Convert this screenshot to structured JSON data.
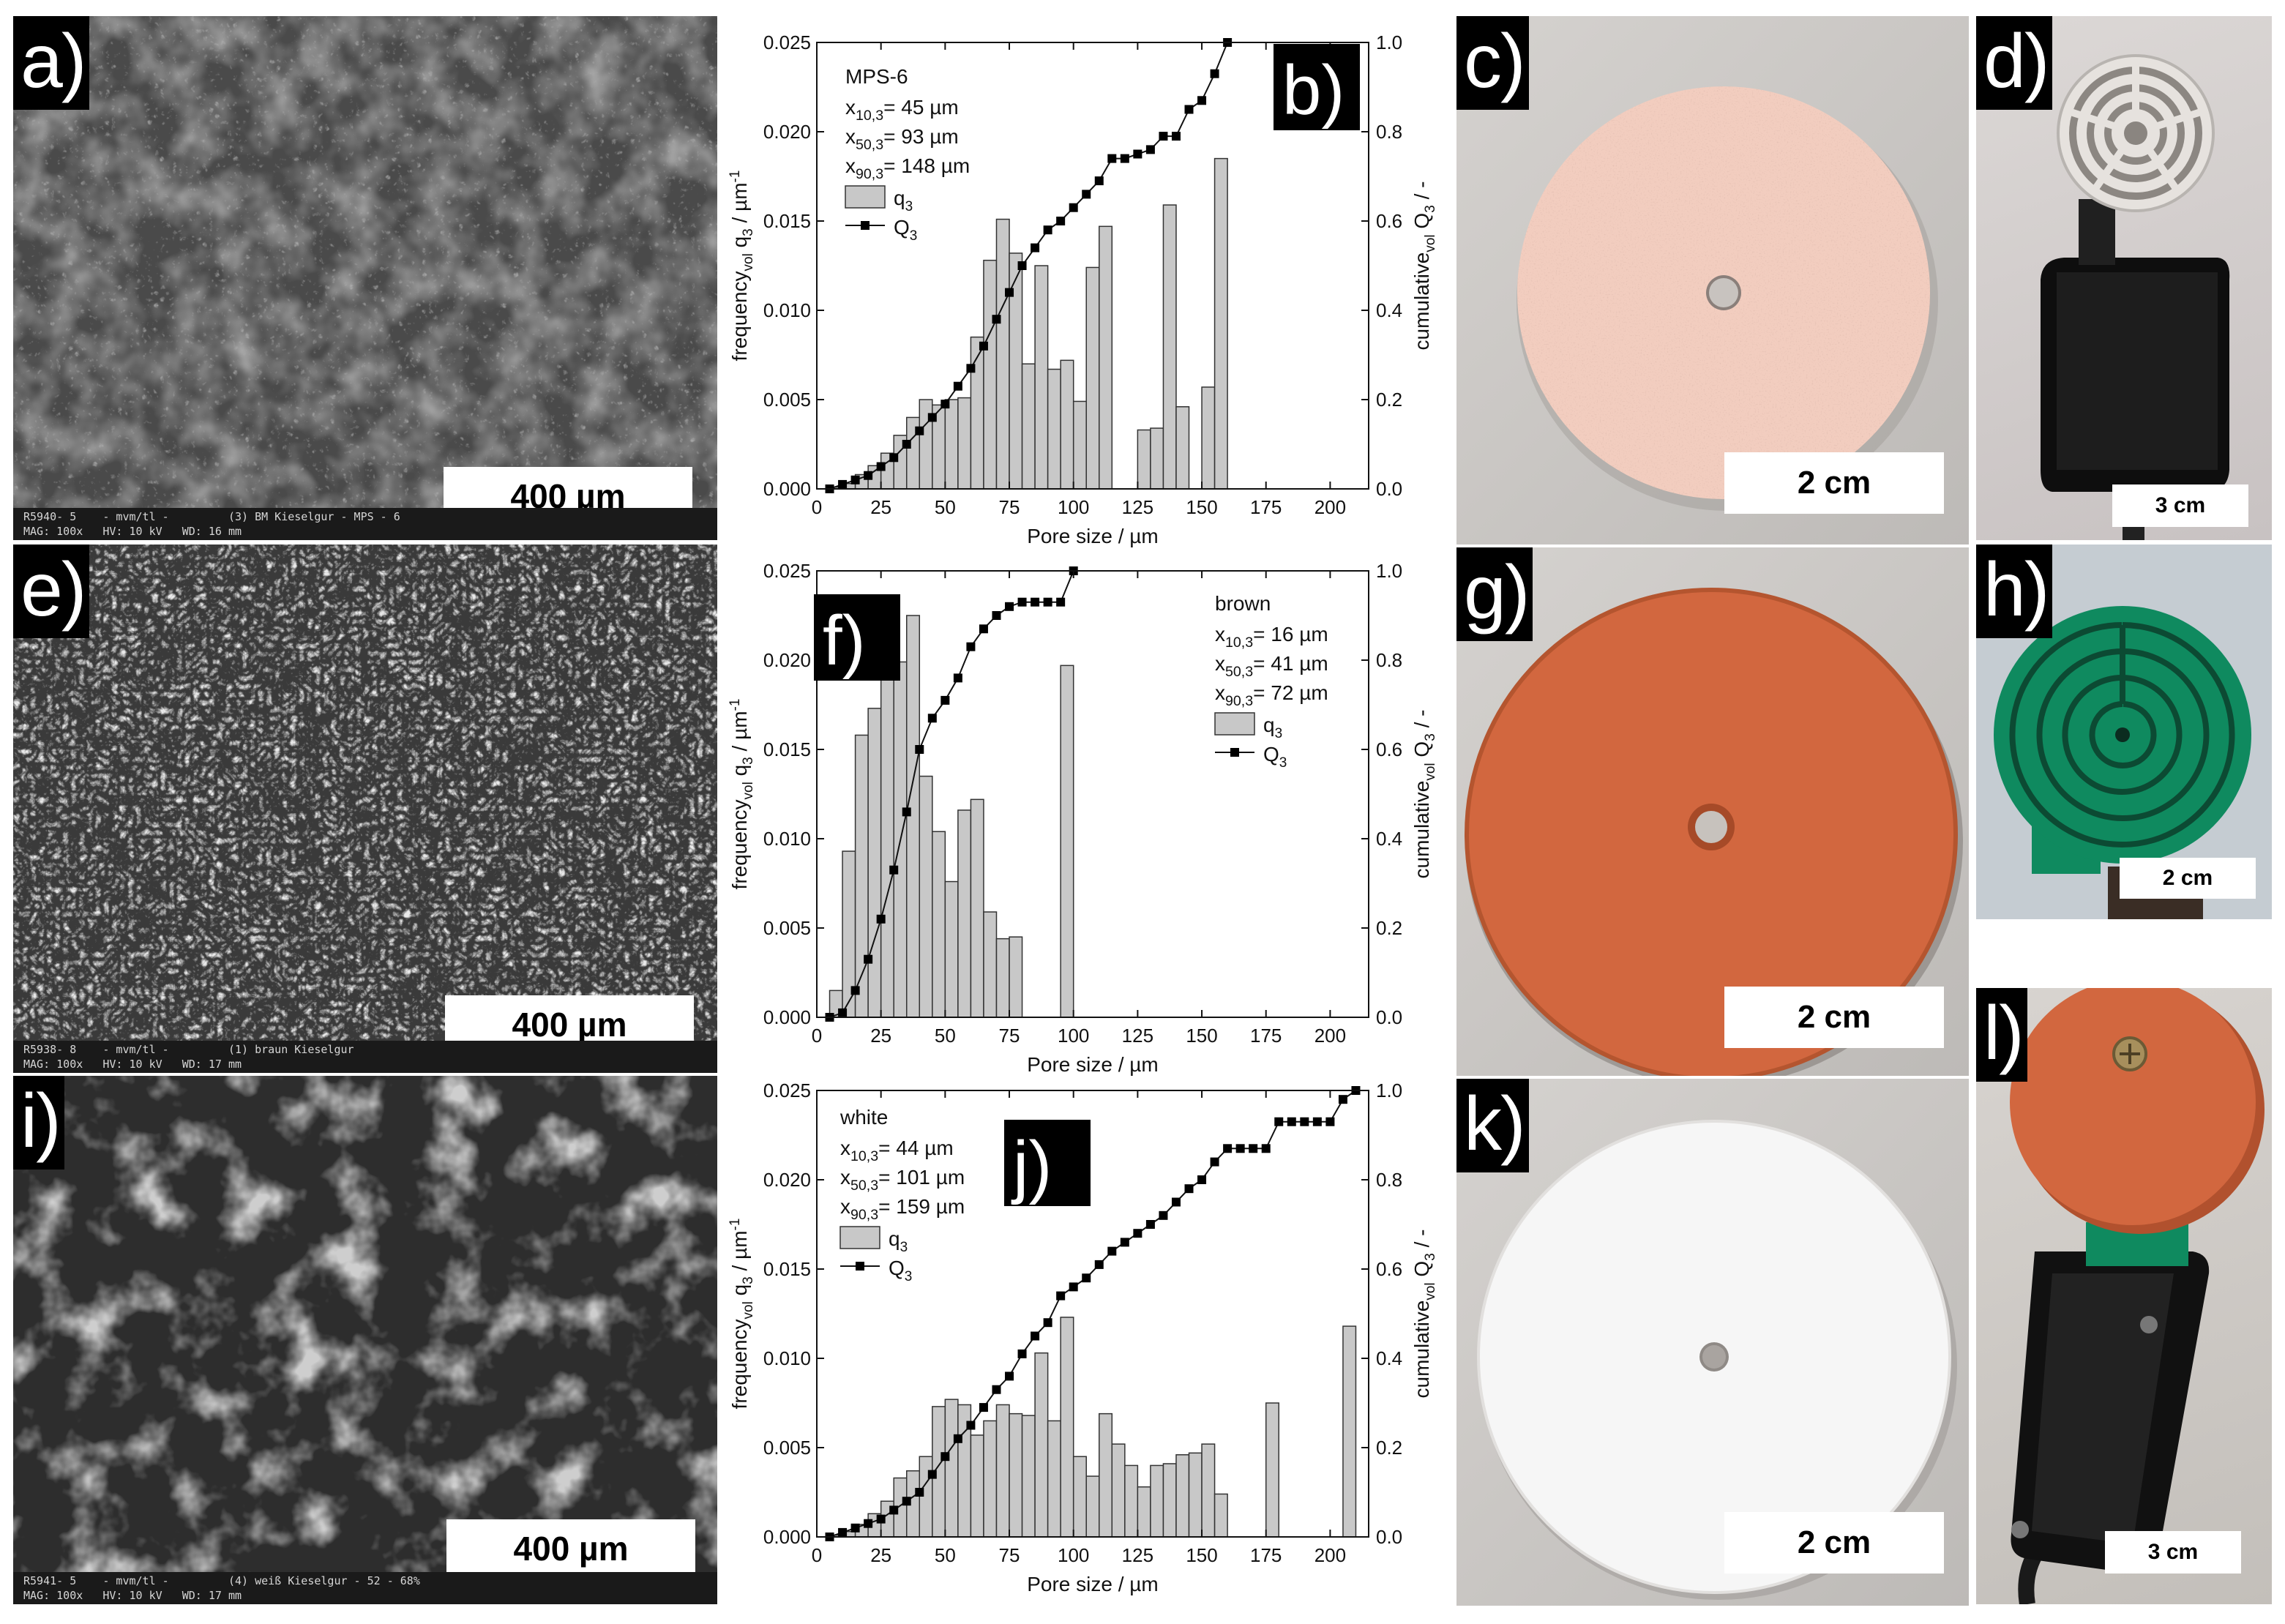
{
  "panels": {
    "a": {
      "label": "a)",
      "scale": "400 µm",
      "footer1": "R5940- 5    - mvm/tl -         (3) BM Kieselgur - MPS - 6",
      "footer2": "MAG: 100x   HV: 10 kV   WD: 16 mm"
    },
    "e": {
      "label": "e)",
      "scale": "400 µm",
      "footer1": "R5938- 8    - mvm/tl -         (1) braun Kieselgur",
      "footer2": "MAG: 100x   HV: 10 kV   WD: 17 mm"
    },
    "i": {
      "label": "i)",
      "scale": "400 µm",
      "footer1": "R5941- 5    - mvm/tl -         (4) weiß Kieselgur - 52 - 68%",
      "footer2": "MAG: 100x   HV: 10 kV   WD: 17 mm"
    },
    "c": {
      "label": "c)",
      "scale": "2 cm"
    },
    "d": {
      "label": "d)",
      "scale": "3 cm"
    },
    "g": {
      "label": "g)",
      "scale": "2 cm"
    },
    "h": {
      "label": "h)",
      "scale": "2 cm"
    },
    "k": {
      "label": "k)",
      "scale": "2 cm"
    },
    "l": {
      "label": "l)",
      "scale": "3 cm"
    }
  },
  "colors": {
    "bar_fill": "#c8c8c8",
    "disk_pink": "#f2cdbf",
    "disk_orange": "#d2673f",
    "disk_white": "#f6f6f6",
    "pcb_green": "#0f8a5f"
  },
  "chart_data": [
    {
      "panel": "b)",
      "type": "bar",
      "sample": "MPS-6",
      "stats": [
        "x10,3= 45 µm",
        "x50,3= 93 µm",
        "x90,3= 148 µm"
      ],
      "xlabel": "Pore size / µm",
      "ylabel": "frequencyvol q3 / µm-1",
      "y2label": "cumulativevol Q3 / -",
      "xlim": [
        0,
        215
      ],
      "ylim": [
        0,
        0.025
      ],
      "y2lim": [
        0,
        1.0
      ],
      "xticks": [
        0,
        25,
        50,
        75,
        100,
        125,
        150,
        175,
        200
      ],
      "yticks": [
        "0.000",
        "0.005",
        "0.010",
        "0.015",
        "0.020",
        "0.025"
      ],
      "y2ticks": [
        "0.0",
        "0.2",
        "0.4",
        "0.6",
        "0.8",
        "1.0"
      ],
      "legend": [
        {
          "name": "q3",
          "kind": "bar"
        },
        {
          "name": "Q3",
          "kind": "line"
        }
      ],
      "bin_width": 5,
      "q3": {
        "x": [
          7.5,
          12.5,
          17.5,
          22.5,
          27.5,
          32.5,
          37.5,
          42.5,
          47.5,
          52.5,
          57.5,
          62.5,
          67.5,
          72.5,
          77.5,
          82.5,
          87.5,
          92.5,
          97.5,
          102.5,
          107.5,
          112.5,
          117.5,
          122.5,
          127.5,
          132.5,
          137.5,
          142.5,
          147.5,
          152.5,
          157.5
        ],
        "values": [
          0.0001,
          0.0003,
          0.0008,
          0.0013,
          0.002,
          0.003,
          0.004,
          0.005,
          0.0047,
          0.005,
          0.0051,
          0.0085,
          0.0128,
          0.0151,
          0.0132,
          0.007,
          0.0125,
          0.0067,
          0.0072,
          0.0049,
          0.0124,
          0.0147,
          0,
          0,
          0.0033,
          0.0034,
          0.0159,
          0.0046,
          0,
          0.0057,
          0.0185
        ]
      },
      "Q3": {
        "x": [
          5,
          10,
          15,
          20,
          25,
          30,
          35,
          40,
          45,
          50,
          55,
          60,
          65,
          70,
          75,
          80,
          85,
          90,
          95,
          100,
          105,
          110,
          115,
          120,
          125,
          130,
          135,
          140,
          145,
          150,
          155,
          160
        ],
        "values": [
          0,
          0.01,
          0.02,
          0.03,
          0.05,
          0.07,
          0.1,
          0.13,
          0.16,
          0.19,
          0.23,
          0.27,
          0.32,
          0.38,
          0.44,
          0.5,
          0.54,
          0.58,
          0.6,
          0.63,
          0.66,
          0.69,
          0.74,
          0.74,
          0.75,
          0.76,
          0.79,
          0.79,
          0.85,
          0.87,
          0.93,
          1.0
        ]
      }
    },
    {
      "panel": "f)",
      "type": "bar",
      "sample": "brown",
      "stats": [
        "x10,3= 16 µm",
        "x50,3= 41 µm",
        "x90,3= 72 µm"
      ],
      "xlabel": "Pore size / µm",
      "ylabel": "frequencyvol q3 / µm-1",
      "y2label": "cumulativevol Q3 / -",
      "xlim": [
        0,
        215
      ],
      "ylim": [
        0,
        0.025
      ],
      "y2lim": [
        0,
        1.0
      ],
      "xticks": [
        0,
        25,
        50,
        75,
        100,
        125,
        150,
        175,
        200
      ],
      "yticks": [
        "0.000",
        "0.005",
        "0.010",
        "0.015",
        "0.020",
        "0.025"
      ],
      "y2ticks": [
        "0.0",
        "0.2",
        "0.4",
        "0.6",
        "0.8",
        "1.0"
      ],
      "legend": [
        {
          "name": "q3",
          "kind": "bar"
        },
        {
          "name": "Q3",
          "kind": "line"
        }
      ],
      "bin_width": 5,
      "q3": {
        "x": [
          7.5,
          12.5,
          17.5,
          22.5,
          27.5,
          32.5,
          37.5,
          42.5,
          47.5,
          52.5,
          57.5,
          62.5,
          67.5,
          72.5,
          77.5,
          82.5,
          87.5,
          92.5,
          97.5
        ],
        "values": [
          0.0015,
          0.0093,
          0.0158,
          0.0173,
          0.0212,
          0.0199,
          0.0225,
          0.0135,
          0.0104,
          0.0076,
          0.0116,
          0.0122,
          0.0059,
          0.0044,
          0.0045,
          0,
          0,
          0,
          0.0197
        ]
      },
      "Q3": {
        "x": [
          5,
          10,
          15,
          20,
          25,
          30,
          35,
          40,
          45,
          50,
          55,
          60,
          65,
          70,
          75,
          80,
          85,
          90,
          95,
          100
        ],
        "values": [
          0,
          0.01,
          0.06,
          0.13,
          0.22,
          0.33,
          0.46,
          0.6,
          0.67,
          0.71,
          0.76,
          0.83,
          0.87,
          0.9,
          0.92,
          0.93,
          0.93,
          0.93,
          0.93,
          1.0
        ]
      }
    },
    {
      "panel": "j)",
      "type": "bar",
      "sample": "white",
      "stats": [
        "x10,3= 44 µm",
        "x50,3= 101 µm",
        "x90,3= 159 µm"
      ],
      "xlabel": "Pore size / µm",
      "ylabel": "frequencyvol q3 / µm-1",
      "y2label": "cumulativevol Q3 / -",
      "xlim": [
        0,
        215
      ],
      "ylim": [
        0,
        0.025
      ],
      "y2lim": [
        0,
        1.0
      ],
      "xticks": [
        0,
        25,
        50,
        75,
        100,
        125,
        150,
        175,
        200
      ],
      "yticks": [
        "0.000",
        "0.005",
        "0.010",
        "0.015",
        "0.020",
        "0.025"
      ],
      "y2ticks": [
        "0.0",
        "0.2",
        "0.4",
        "0.6",
        "0.8",
        "1.0"
      ],
      "legend": [
        {
          "name": "q3",
          "kind": "bar"
        },
        {
          "name": "Q3",
          "kind": "line"
        }
      ],
      "bin_width": 5,
      "q3": {
        "x": [
          7.5,
          12.5,
          17.5,
          22.5,
          27.5,
          32.5,
          37.5,
          42.5,
          47.5,
          52.5,
          57.5,
          62.5,
          67.5,
          72.5,
          77.5,
          82.5,
          87.5,
          92.5,
          97.5,
          102.5,
          107.5,
          112.5,
          117.5,
          122.5,
          127.5,
          132.5,
          137.5,
          142.5,
          147.5,
          152.5,
          157.5,
          162.5,
          167.5,
          172.5,
          177.5,
          182.5,
          187.5,
          192.5,
          197.5,
          202.5,
          207.5
        ],
        "values": [
          0.0001,
          0.0003,
          0.0007,
          0.0013,
          0.002,
          0.0033,
          0.0037,
          0.0045,
          0.0073,
          0.0077,
          0.0074,
          0.0057,
          0.0065,
          0.0074,
          0.0069,
          0.0068,
          0.0103,
          0.0065,
          0.0123,
          0.0045,
          0.0034,
          0.0069,
          0.0052,
          0.004,
          0.0028,
          0.004,
          0.0041,
          0.0046,
          0.0047,
          0.0052,
          0.0024,
          0,
          0,
          0,
          0.0075,
          0,
          0,
          0,
          0,
          0,
          0.0118
        ]
      },
      "Q3": {
        "x": [
          5,
          10,
          15,
          20,
          25,
          30,
          35,
          40,
          45,
          50,
          55,
          60,
          65,
          70,
          75,
          80,
          85,
          90,
          95,
          100,
          105,
          110,
          115,
          120,
          125,
          130,
          135,
          140,
          145,
          150,
          155,
          160,
          165,
          170,
          175,
          180,
          185,
          190,
          195,
          200,
          205,
          210
        ],
        "values": [
          0,
          0.01,
          0.02,
          0.03,
          0.04,
          0.06,
          0.08,
          0.1,
          0.14,
          0.18,
          0.22,
          0.25,
          0.29,
          0.33,
          0.36,
          0.41,
          0.45,
          0.48,
          0.54,
          0.56,
          0.58,
          0.61,
          0.64,
          0.66,
          0.68,
          0.7,
          0.72,
          0.75,
          0.78,
          0.8,
          0.84,
          0.87,
          0.87,
          0.87,
          0.87,
          0.93,
          0.93,
          0.93,
          0.93,
          0.93,
          0.98,
          1.0
        ]
      }
    }
  ]
}
